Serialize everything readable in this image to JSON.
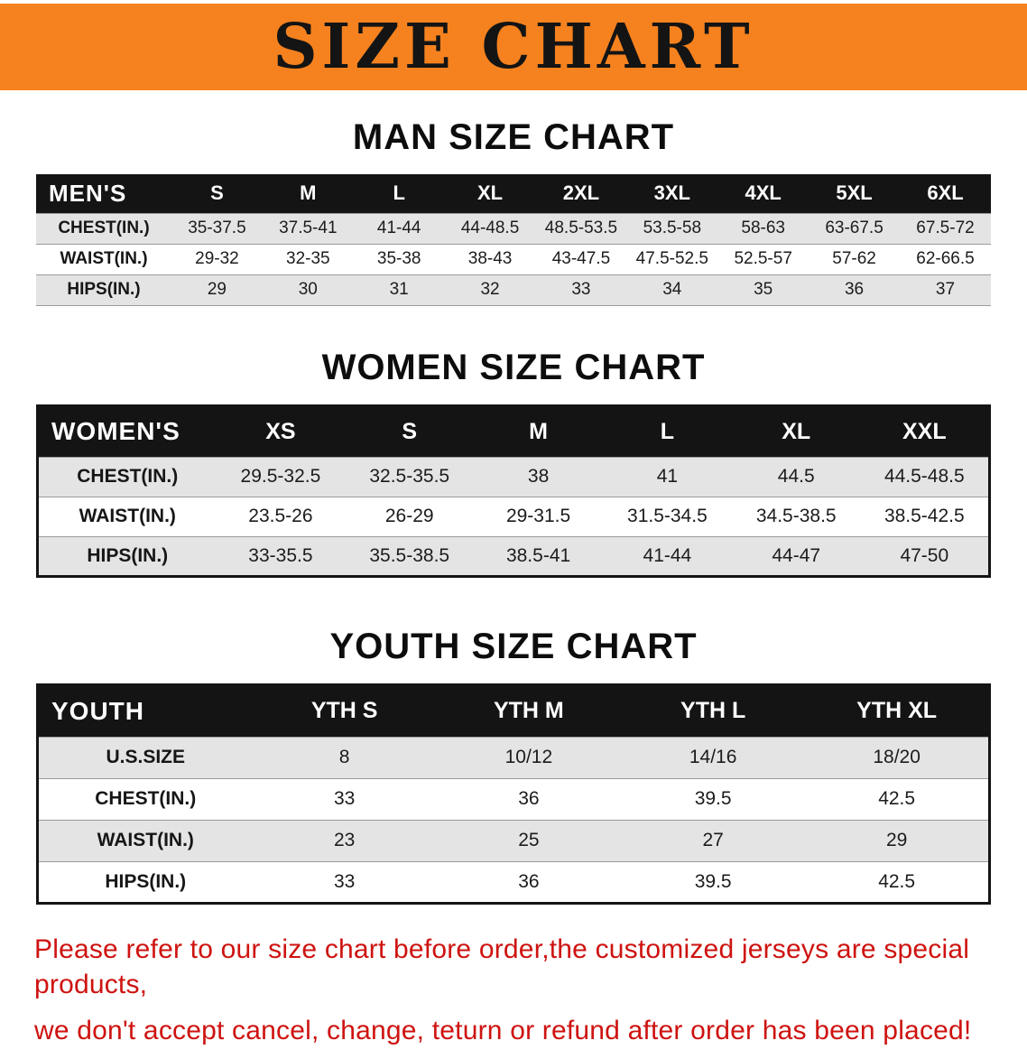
{
  "banner": {
    "title": "SIZE CHART"
  },
  "colors": {
    "banner_bg": "#F5821F",
    "header_bg": "#141414",
    "row_alt": "#e4e4e4",
    "footer_text": "#CE1310"
  },
  "sections": [
    {
      "id": "men",
      "heading": "MAN SIZE CHART",
      "corner": "MEN'S",
      "sizes": [
        "S",
        "M",
        "L",
        "XL",
        "2XL",
        "3XL",
        "4XL",
        "5XL",
        "6XL"
      ],
      "rows": [
        {
          "label": "CHEST(IN.)",
          "values": [
            "35-37.5",
            "37.5-41",
            "41-44",
            "44-48.5",
            "48.5-53.5",
            "53.5-58",
            "58-63",
            "63-67.5",
            "67.5-72"
          ]
        },
        {
          "label": "WAIST(IN.)",
          "values": [
            "29-32",
            "32-35",
            "35-38",
            "38-43",
            "43-47.5",
            "47.5-52.5",
            "52.5-57",
            "57-62",
            "62-66.5"
          ]
        },
        {
          "label": "HIPS(IN.)",
          "values": [
            "29",
            "30",
            "31",
            "32",
            "33",
            "34",
            "35",
            "36",
            "37"
          ]
        }
      ]
    },
    {
      "id": "women",
      "heading": "WOMEN SIZE CHART",
      "corner": "WOMEN'S",
      "sizes": [
        "XS",
        "S",
        "M",
        "L",
        "XL",
        "XXL"
      ],
      "rows": [
        {
          "label": "CHEST(IN.)",
          "values": [
            "29.5-32.5",
            "32.5-35.5",
            "38",
            "41",
            "44.5",
            "44.5-48.5"
          ]
        },
        {
          "label": "WAIST(IN.)",
          "values": [
            "23.5-26",
            "26-29",
            "29-31.5",
            "31.5-34.5",
            "34.5-38.5",
            "38.5-42.5"
          ]
        },
        {
          "label": "HIPS(IN.)",
          "values": [
            "33-35.5",
            "35.5-38.5",
            "38.5-41",
            "41-44",
            "44-47",
            "47-50"
          ]
        }
      ]
    },
    {
      "id": "youth",
      "heading": "YOUTH SIZE CHART",
      "corner": "YOUTH",
      "sizes": [
        "YTH S",
        "YTH M",
        "YTH L",
        "YTH XL"
      ],
      "rows": [
        {
          "label": "U.S.SIZE",
          "values": [
            "8",
            "10/12",
            "14/16",
            "18/20"
          ]
        },
        {
          "label": "CHEST(IN.)",
          "values": [
            "33",
            "36",
            "39.5",
            "42.5"
          ]
        },
        {
          "label": "WAIST(IN.)",
          "values": [
            "23",
            "25",
            "27",
            "29"
          ]
        },
        {
          "label": "HIPS(IN.)",
          "values": [
            "33",
            "36",
            "39.5",
            "42.5"
          ]
        }
      ]
    }
  ],
  "footer": {
    "line1": "Please refer to our size chart before order,the customized jerseys are special products,",
    "line2": "we don't accept cancel, change, teturn or refund after order has been placed!"
  }
}
